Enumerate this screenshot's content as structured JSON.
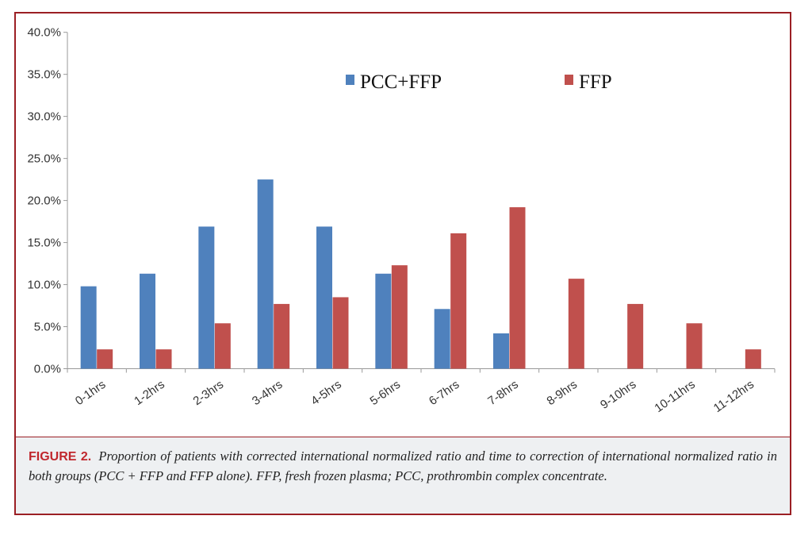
{
  "chart_data": {
    "type": "bar",
    "categories": [
      "0-1hrs",
      "1-2hrs",
      "2-3hrs",
      "3-4hrs",
      "4-5hrs",
      "5-6hrs",
      "6-7hrs",
      "7-8hrs",
      "8-9hrs",
      "9-10hrs",
      "10-11hrs",
      "11-12hrs"
    ],
    "series": [
      {
        "name": "PCC+FFP",
        "color": "#4f81bd",
        "values": [
          9.8,
          11.3,
          16.9,
          22.5,
          16.9,
          11.3,
          7.1,
          4.2,
          0,
          0,
          0,
          0
        ]
      },
      {
        "name": "FFP",
        "color": "#c0504d",
        "values": [
          2.3,
          2.3,
          5.4,
          7.7,
          8.5,
          12.3,
          16.1,
          19.2,
          10.7,
          7.7,
          5.4,
          2.3
        ]
      }
    ],
    "ylim": [
      0,
      40
    ],
    "yticks": [
      "0.0%",
      "5.0%",
      "10.0%",
      "15.0%",
      "20.0%",
      "25.0%",
      "30.0%",
      "35.0%",
      "40.0%"
    ],
    "ytick_values": [
      0,
      5,
      10,
      15,
      20,
      25,
      30,
      35,
      40
    ],
    "legend_position": "top-center",
    "grid": false
  },
  "caption": {
    "label": "FIGURE 2.",
    "text": "Proportion of patients with corrected international normalized ratio and time to correction of international normalized ratio in both groups (PCC + FFP and FFP alone). FFP, fresh frozen plasma; PCC, prothrombin complex concentrate."
  },
  "frame_color": "#9b1f24"
}
